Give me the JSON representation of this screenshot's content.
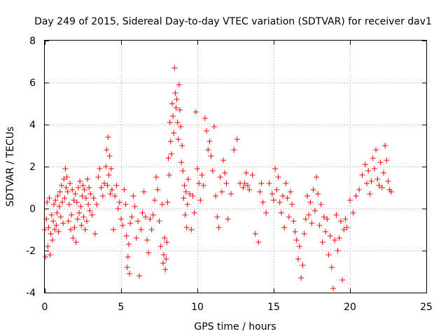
{
  "chart_data": {
    "type": "scatter",
    "title": "Day 249 of 2015, Sidereal Day-to-day VTEC variation (SDTVAR) for receiver dav1",
    "xlabel": "GPS time / hours",
    "ylabel": "SDTVAR / TECUs",
    "xlim": [
      0,
      25
    ],
    "ylim": [
      -4,
      8
    ],
    "xticks": [
      0,
      5,
      10,
      15,
      20,
      25
    ],
    "yticks": [
      -4,
      -2,
      0,
      2,
      4,
      6,
      8
    ],
    "grid": true,
    "marker": "+",
    "color": "#ff0000",
    "series": [
      {
        "name": "SDTVAR",
        "x": [
          0.0,
          0.05,
          0.1,
          0.15,
          0.2,
          0.25,
          0.3,
          0.35,
          0.4,
          0.45,
          0.5,
          0.55,
          0.6,
          0.65,
          0.7,
          0.75,
          0.8,
          0.85,
          0.9,
          0.95,
          1.0,
          1.05,
          1.1,
          1.15,
          1.2,
          1.25,
          1.3,
          1.35,
          1.4,
          1.45,
          1.5,
          1.55,
          1.6,
          1.65,
          1.7,
          1.75,
          1.8,
          1.85,
          1.9,
          1.95,
          2.0,
          2.05,
          2.1,
          2.15,
          2.2,
          2.25,
          2.3,
          2.35,
          2.4,
          2.45,
          2.5,
          2.55,
          2.6,
          2.65,
          2.7,
          2.75,
          2.8,
          2.85,
          2.9,
          2.95,
          3.0,
          3.1,
          3.2,
          3.3,
          3.4,
          3.5,
          3.6,
          3.7,
          3.8,
          3.9,
          4.0,
          4.05,
          4.1,
          4.15,
          4.2,
          4.25,
          4.3,
          4.35,
          4.4,
          4.5,
          4.6,
          4.7,
          4.8,
          4.9,
          5.0,
          5.1,
          5.2,
          5.3,
          5.35,
          5.4,
          5.45,
          5.5,
          5.55,
          5.6,
          5.7,
          5.8,
          5.9,
          6.0,
          6.1,
          6.2,
          6.3,
          6.4,
          6.5,
          6.6,
          6.7,
          6.8,
          6.9,
          7.0,
          7.1,
          7.2,
          7.3,
          7.4,
          7.5,
          7.6,
          7.7,
          7.75,
          7.8,
          7.85,
          7.9,
          7.95,
          8.0,
          8.05,
          8.1,
          8.15,
          8.2,
          8.25,
          8.3,
          8.35,
          8.4,
          8.45,
          8.5,
          8.55,
          8.6,
          8.65,
          8.7,
          8.75,
          8.8,
          8.85,
          8.9,
          8.95,
          9.0,
          9.05,
          9.1,
          9.15,
          9.2,
          9.25,
          9.3,
          9.35,
          9.4,
          9.5,
          9.6,
          9.7,
          9.8,
          9.9,
          10.0,
          10.1,
          10.2,
          10.3,
          10.4,
          10.5,
          10.6,
          10.7,
          10.8,
          10.9,
          11.0,
          11.1,
          11.2,
          11.3,
          11.4,
          11.5,
          11.6,
          11.7,
          11.8,
          11.9,
          12.0,
          12.2,
          12.4,
          12.6,
          12.8,
          13.0,
          13.1,
          13.2,
          13.3,
          13.4,
          13.6,
          13.8,
          14.0,
          14.1,
          14.2,
          14.3,
          14.5,
          14.7,
          14.9,
          15.0,
          15.1,
          15.2,
          15.3,
          15.4,
          15.5,
          15.6,
          15.7,
          15.8,
          15.9,
          16.0,
          16.1,
          16.2,
          16.3,
          16.4,
          16.5,
          16.6,
          16.7,
          16.8,
          16.9,
          17.0,
          17.1,
          17.2,
          17.3,
          17.4,
          17.5,
          17.6,
          17.7,
          17.8,
          17.9,
          18.0,
          18.1,
          18.2,
          18.3,
          18.4,
          18.5,
          18.6,
          18.7,
          18.8,
          18.9,
          19.0,
          19.1,
          19.2,
          19.3,
          19.4,
          19.5,
          19.6,
          19.7,
          19.8,
          20.0,
          20.2,
          20.4,
          20.6,
          20.8,
          21.0,
          21.1,
          21.2,
          21.3,
          21.4,
          21.5,
          21.6,
          21.7,
          21.8,
          21.9,
          22.0,
          22.1,
          22.2,
          22.3,
          22.4,
          22.5,
          22.6,
          22.7
        ],
        "y": [
          -1.0,
          -2.3,
          -0.5,
          0.3,
          -1.8,
          -0.9,
          0.5,
          -2.2,
          -1.2,
          -0.3,
          -1.5,
          -0.6,
          0.2,
          -1.0,
          0.4,
          -0.8,
          -0.2,
          0.6,
          -1.1,
          0.1,
          0.8,
          -0.4,
          1.1,
          0.3,
          -0.7,
          1.4,
          0.5,
          1.9,
          1.0,
          1.5,
          0.8,
          -0.6,
          0.2,
          1.2,
          -1.0,
          -0.3,
          0.9,
          -1.4,
          0.4,
          -0.9,
          0.7,
          -1.6,
          0.3,
          -0.5,
          1.0,
          -0.2,
          1.3,
          0.1,
          -0.8,
          0.6,
          1.1,
          -0.4,
          0.9,
          -1.0,
          0.5,
          -0.6,
          1.4,
          0.2,
          1.0,
          -0.1,
          0.7,
          -0.3,
          0.5,
          -1.2,
          0.2,
          1.5,
          1.9,
          1.0,
          0.6,
          1.2,
          2.0,
          2.8,
          1.1,
          3.4,
          1.6,
          2.5,
          0.7,
          1.9,
          0.9,
          -1.0,
          0.6,
          1.1,
          0.0,
          0.3,
          -0.5,
          -0.8,
          0.9,
          0.2,
          -1.3,
          -2.8,
          -2.3,
          -1.7,
          -3.1,
          -0.7,
          -0.4,
          0.6,
          0.1,
          -1.4,
          -0.6,
          -3.2,
          -1.0,
          -0.2,
          0.8,
          -0.4,
          -1.5,
          -2.1,
          -0.5,
          -1.0,
          -0.3,
          0.4,
          1.5,
          0.9,
          -0.6,
          -1.8,
          0.2,
          -2.6,
          -2.2,
          -1.4,
          -2.9,
          -2.4,
          -1.6,
          0.3,
          2.4,
          1.6,
          4.1,
          3.2,
          2.6,
          5.0,
          4.4,
          3.6,
          6.7,
          5.5,
          4.8,
          5.2,
          4.1,
          3.3,
          5.9,
          4.7,
          3.9,
          2.2,
          3.0,
          1.8,
          0.5,
          1.1,
          -0.3,
          0.8,
          -0.9,
          0.2,
          1.4,
          0.7,
          -1.0,
          0.6,
          -0.2,
          4.6,
          1.9,
          1.2,
          0.4,
          1.6,
          1.1,
          4.3,
          3.7,
          2.8,
          3.2,
          2.5,
          1.8,
          3.9,
          0.6,
          -0.4,
          -0.9,
          1.5,
          0.8,
          2.3,
          1.7,
          1.2,
          -0.5,
          0.7,
          2.8,
          3.3,
          1.2,
          1.0,
          1.2,
          1.7,
          1.1,
          0.9,
          1.6,
          -1.2,
          -1.6,
          0.8,
          1.2,
          0.3,
          -0.2,
          1.2,
          0.7,
          0.4,
          1.9,
          0.9,
          1.5,
          0.3,
          -0.2,
          0.6,
          -0.9,
          1.2,
          0.5,
          -0.4,
          0.8,
          0.2,
          -0.6,
          -1.1,
          -1.5,
          -2.4,
          -1.8,
          -3.3,
          -2.7,
          -1.2,
          -0.5,
          0.6,
          -0.3,
          0.3,
          -0.7,
          0.9,
          -0.1,
          1.5,
          0.7,
          -0.8,
          0.2,
          -1.6,
          -0.4,
          -1.1,
          -0.5,
          -2.2,
          -1.3,
          -2.8,
          -3.8,
          -1.5,
          -0.3,
          -2.0,
          -1.4,
          -0.6,
          -3.4,
          -1.0,
          -0.5,
          -0.9,
          0.4,
          -0.2,
          0.6,
          0.9,
          1.6,
          2.1,
          1.2,
          1.8,
          0.7,
          1.3,
          2.4,
          1.9,
          2.8,
          1.4,
          1.1,
          2.2,
          1.0,
          1.7,
          3.0,
          2.3,
          1.3,
          0.9,
          0.8
        ]
      }
    ]
  }
}
